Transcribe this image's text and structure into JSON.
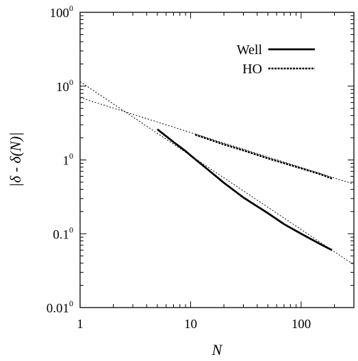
{
  "chart_data": {
    "type": "line",
    "xscale": "log",
    "yscale": "log",
    "xlim": [
      1,
      300
    ],
    "ylim": [
      0.01,
      100
    ],
    "xlabel": "N",
    "ylabel": "|δ - δ(N)|",
    "x_ticks": [
      1,
      10,
      100
    ],
    "x_tick_labels": [
      "1",
      "10",
      "100"
    ],
    "y_ticks": [
      0.01,
      0.1,
      1,
      10,
      100
    ],
    "y_tick_labels": [
      {
        "base": "0.01",
        "sup": "0"
      },
      {
        "base": "0.1",
        "sup": "0"
      },
      {
        "base": "1",
        "sup": "0"
      },
      {
        "base": "10",
        "sup": "0"
      },
      {
        "base": "100",
        "sup": "0"
      }
    ],
    "legend_position": "top-right",
    "series": [
      {
        "name": "Well",
        "style": "solid",
        "points": [
          [
            5,
            2.6
          ],
          [
            7,
            1.75
          ],
          [
            9,
            1.32
          ],
          [
            10,
            1.15
          ],
          [
            15,
            0.7
          ],
          [
            20,
            0.49
          ],
          [
            30,
            0.31
          ],
          [
            50,
            0.19
          ],
          [
            70,
            0.135
          ],
          [
            100,
            0.1
          ],
          [
            150,
            0.072
          ],
          [
            190,
            0.06
          ]
        ]
      },
      {
        "name": "HO",
        "style": "dashed",
        "points": [
          [
            11,
            2.2
          ],
          [
            20,
            1.62
          ],
          [
            30,
            1.35
          ],
          [
            50,
            1.05
          ],
          [
            100,
            0.77
          ],
          [
            150,
            0.64
          ],
          [
            190,
            0.56
          ]
        ]
      }
    ],
    "fit_lines": [
      {
        "style": "dotted",
        "points": [
          [
            1,
            11.5
          ],
          [
            300,
            0.038
          ]
        ]
      },
      {
        "style": "dotted",
        "points": [
          [
            1,
            7.0
          ],
          [
            300,
            0.47
          ]
        ]
      }
    ]
  }
}
